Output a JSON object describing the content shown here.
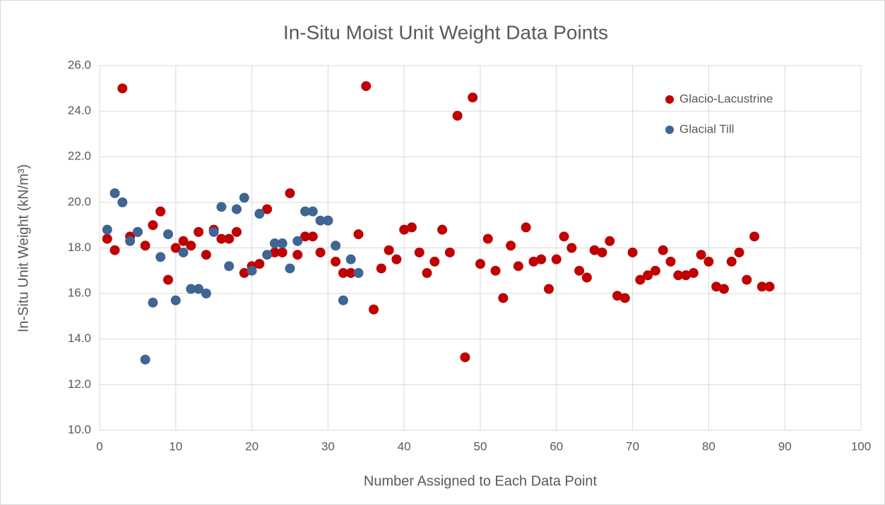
{
  "chart_data": {
    "type": "scatter",
    "title": "In-Situ Moist Unit Weight Data Points",
    "x_label": "Number Assigned to Each Data Point",
    "y_label": "In-Situ Unit Weight (kN/m³)",
    "xlim": [
      0,
      100
    ],
    "xticks": [
      0,
      10,
      20,
      30,
      40,
      50,
      60,
      70,
      80,
      90,
      100
    ],
    "ylim": [
      10,
      26
    ],
    "yticks": [
      {
        "value": 10,
        "label": "10.0"
      },
      {
        "value": 12,
        "label": "12.0"
      },
      {
        "value": 14,
        "label": "14.0"
      },
      {
        "value": 16,
        "label": "16.0"
      },
      {
        "value": 18,
        "label": "18.0"
      },
      {
        "value": 20,
        "label": "20.0"
      },
      {
        "value": 22,
        "label": "22.0"
      },
      {
        "value": 24,
        "label": "24.0"
      },
      {
        "value": 26,
        "label": "26.0"
      }
    ],
    "grid": true,
    "legend": "upper right",
    "series": [
      {
        "name": "Glacio-Lacustrine",
        "color": "#c00000",
        "x": [
          1,
          2,
          3,
          4,
          5,
          6,
          7,
          8,
          9,
          10,
          11,
          12,
          13,
          14,
          15,
          16,
          17,
          18,
          19,
          20,
          21,
          22,
          23,
          24,
          25,
          26,
          27,
          28,
          29,
          30,
          31,
          32,
          33,
          34,
          35,
          36,
          37,
          38,
          39,
          40,
          41,
          42,
          43,
          44,
          45,
          46,
          47,
          48,
          49,
          50,
          51,
          52,
          53,
          54,
          55,
          56,
          57,
          58,
          59,
          60,
          61,
          62,
          63,
          64,
          65,
          66,
          67,
          68,
          69,
          70,
          71,
          72,
          73,
          74,
          75,
          76,
          77,
          78,
          79,
          80,
          81,
          82,
          83,
          84,
          85,
          86,
          87,
          88
        ],
        "values": [
          18.4,
          17.9,
          25.0,
          18.5,
          18.7,
          18.1,
          19.0,
          19.6,
          16.6,
          18.0,
          18.3,
          18.1,
          18.7,
          17.7,
          18.8,
          18.4,
          18.4,
          18.7,
          16.9,
          17.2,
          17.3,
          19.7,
          17.8,
          17.8,
          20.4,
          17.7,
          18.5,
          18.5,
          17.8,
          19.2,
          17.4,
          16.9,
          16.9,
          18.6,
          25.1,
          15.3,
          17.1,
          17.9,
          17.5,
          18.8,
          18.9,
          17.8,
          16.9,
          17.4,
          18.8,
          17.8,
          23.8,
          13.2,
          24.6,
          17.3,
          18.4,
          17.0,
          15.8,
          18.1,
          17.2,
          18.9,
          17.4,
          17.5,
          16.2,
          17.5,
          18.5,
          18.0,
          17.0,
          16.7,
          17.9,
          17.8,
          18.3,
          15.9,
          15.8,
          17.8,
          16.6,
          16.8,
          17.0,
          17.9,
          17.4,
          16.8,
          16.8,
          16.9,
          17.7,
          17.4,
          16.3,
          16.2,
          17.4,
          17.8,
          16.6,
          18.5,
          16.3,
          16.3
        ]
      },
      {
        "name": "Glacial Till",
        "color": "#3f6594",
        "x": [
          1,
          2,
          3,
          4,
          5,
          6,
          7,
          8,
          9,
          10,
          11,
          12,
          13,
          14,
          15,
          16,
          17,
          18,
          19,
          20,
          21,
          22,
          23,
          24,
          25,
          26,
          27,
          28,
          29,
          30,
          31,
          32,
          33,
          34
        ],
        "values": [
          18.8,
          20.4,
          20.0,
          18.3,
          18.7,
          13.1,
          15.6,
          17.6,
          18.6,
          15.7,
          17.8,
          16.2,
          16.2,
          16.0,
          18.7,
          19.8,
          17.2,
          19.7,
          20.2,
          17.0,
          19.5,
          17.7,
          18.2,
          18.2,
          17.1,
          18.3,
          19.6,
          19.6,
          19.2,
          19.2,
          18.1,
          15.7,
          17.5,
          16.9
        ]
      }
    ]
  }
}
